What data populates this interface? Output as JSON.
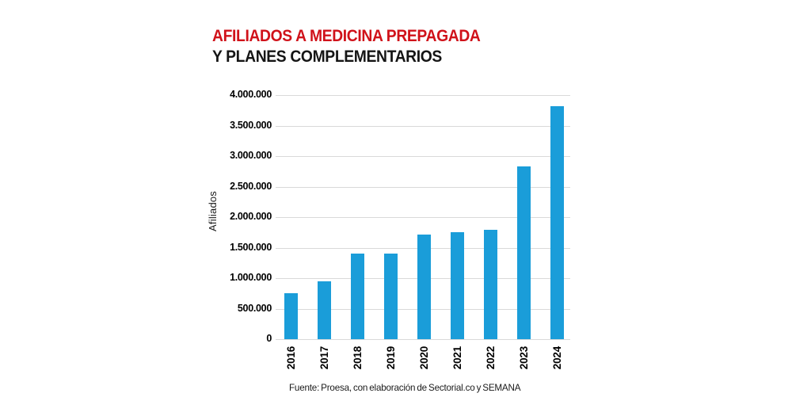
{
  "title": {
    "line1": "AFILIADOS A MEDICINA PREPAGADA",
    "line2": "Y PLANES COMPLEMENTARIOS"
  },
  "footer": {
    "source_label": "Fuente: Proesa, con elaboración de Sectorial.co y SEMANA"
  },
  "colors": {
    "title_red": "#d0121a",
    "title_black": "#151515",
    "bar_blue": "#1a9dd9",
    "gridline_gray": "#d9d9d9"
  },
  "chart_data": {
    "type": "bar",
    "title": "AFILIADOS A MEDICINA PREPAGADA Y PLANES COMPLEMENTARIOS",
    "categories": [
      "2016",
      "2017",
      "2018",
      "2019",
      "2020",
      "2021",
      "2022",
      "2023",
      "2024"
    ],
    "values": [
      750000,
      950000,
      1400000,
      1400000,
      1720000,
      1750000,
      1790000,
      2830000,
      3820000
    ],
    "xlabel": "",
    "ylabel": "Afiliados",
    "ylim": [
      0,
      4000000
    ],
    "ytick_values": [
      0,
      500000,
      1000000,
      1500000,
      2000000,
      2500000,
      3000000,
      3500000,
      4000000
    ],
    "ytick_labels": [
      "0",
      "500.000",
      "1.000.000",
      "1.500.000",
      "2.000.000",
      "2.500.000",
      "3.000.000",
      "3.500.000",
      "4.000.000"
    ],
    "grid": true,
    "legend": false,
    "bar_color": "#1a9dd9"
  }
}
